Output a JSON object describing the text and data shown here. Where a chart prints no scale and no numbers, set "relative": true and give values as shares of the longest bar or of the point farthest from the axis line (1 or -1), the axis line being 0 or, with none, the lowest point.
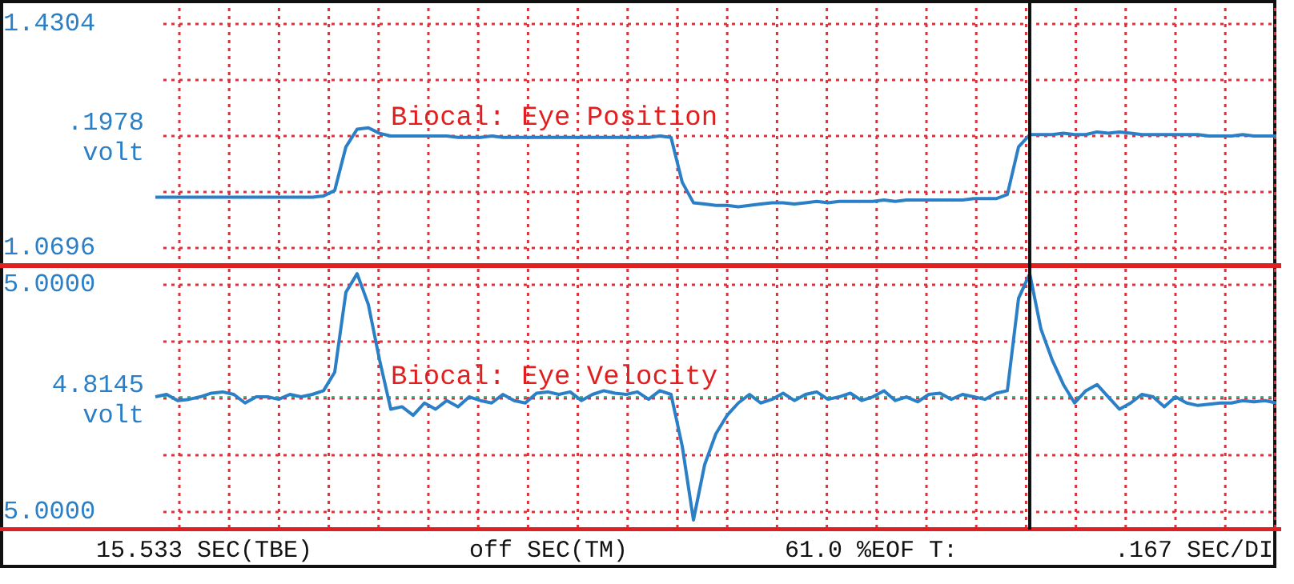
{
  "chart_data": [
    {
      "type": "line",
      "relative": true,
      "grid": true,
      "legend": false,
      "marker": "none",
      "line_style": "solid",
      "categories": [
        null,
        null,
        null,
        null,
        null,
        null,
        null,
        null,
        null,
        null,
        null,
        null,
        null,
        null,
        null,
        null,
        null,
        null,
        null,
        null,
        null,
        null,
        null,
        null,
        null,
        null,
        null,
        null,
        null,
        null,
        null,
        null,
        null,
        null,
        null,
        null,
        null,
        null,
        null,
        null,
        null,
        null,
        null,
        null,
        null,
        null,
        null,
        null,
        null,
        null,
        null,
        null,
        null,
        null,
        null,
        null,
        null,
        null,
        null,
        null,
        null,
        null,
        null,
        null,
        null,
        null,
        null,
        null,
        null,
        null,
        null,
        null,
        null,
        null,
        null,
        null,
        null,
        null,
        null,
        null,
        null,
        null,
        null,
        null,
        null,
        null,
        null,
        null,
        null,
        null,
        null,
        null,
        null,
        null,
        null,
        null,
        null,
        null,
        null,
        null,
        null
      ],
      "annotations": [
        "1.4304",
        ".1978",
        "volt",
        "1.0696"
      ],
      "series": [
        {
          "name": "Biocal: Eye Position",
          "color": "#2a7fc6",
          "values": [
            0.49,
            0.49,
            0.49,
            0.49,
            0.49,
            0.49,
            0.49,
            0.49,
            0.49,
            0.49,
            0.49,
            0.49,
            0.49,
            0.49,
            0.49,
            0.5,
            0.54,
            0.86,
            0.99,
            1.0,
            0.96,
            0.94,
            0.94,
            0.94,
            0.94,
            0.94,
            0.94,
            0.93,
            0.93,
            0.93,
            0.94,
            0.93,
            0.93,
            0.93,
            0.93,
            0.93,
            0.93,
            0.93,
            0.93,
            0.93,
            0.93,
            0.93,
            0.93,
            0.93,
            0.93,
            0.94,
            0.93,
            0.6,
            0.45,
            0.44,
            0.43,
            0.43,
            0.42,
            0.43,
            0.44,
            0.45,
            0.45,
            0.44,
            0.45,
            0.46,
            0.45,
            0.46,
            0.46,
            0.46,
            0.46,
            0.47,
            0.46,
            0.47,
            0.47,
            0.47,
            0.47,
            0.47,
            0.47,
            0.48,
            0.48,
            0.48,
            0.51,
            0.86,
            0.95,
            0.95,
            0.95,
            0.96,
            0.95,
            0.95,
            0.97,
            0.96,
            0.97,
            0.96,
            0.95,
            0.95,
            0.95,
            0.95,
            0.95,
            0.95,
            0.94,
            0.94,
            0.94,
            0.95,
            0.94,
            0.94,
            0.94
          ]
        }
      ]
    },
    {
      "type": "line",
      "relative": true,
      "grid": true,
      "legend": false,
      "marker": "none",
      "line_style": "solid",
      "categories": [
        null,
        null,
        null,
        null,
        null,
        null,
        null,
        null,
        null,
        null,
        null,
        null,
        null,
        null,
        null,
        null,
        null,
        null,
        null,
        null,
        null,
        null,
        null,
        null,
        null,
        null,
        null,
        null,
        null,
        null,
        null,
        null,
        null,
        null,
        null,
        null,
        null,
        null,
        null,
        null,
        null,
        null,
        null,
        null,
        null,
        null,
        null,
        null,
        null,
        null,
        null,
        null,
        null,
        null,
        null,
        null,
        null,
        null,
        null,
        null,
        null,
        null,
        null,
        null,
        null,
        null,
        null,
        null,
        null,
        null,
        null,
        null,
        null,
        null,
        null,
        null,
        null,
        null,
        null,
        null,
        null,
        null,
        null,
        null,
        null,
        null,
        null,
        null,
        null,
        null,
        null,
        null,
        null,
        null,
        null,
        null,
        null,
        null,
        null,
        null,
        null
      ],
      "annotations": [
        "5.0000",
        "4.8145",
        "volt",
        "5.0000",
        "15.533 SEC(TBE)",
        "off SEC(TM)",
        "61.0 %EOF T:",
        ".167 SEC/DI"
      ],
      "ref_lines": [
        {
          "axis": "y",
          "value": 0,
          "color": "#3fbf8f",
          "line_style": "dotted"
        }
      ],
      "series": [
        {
          "name": "Biocal: Eye Velocity",
          "color": "#2a7fc6",
          "values": [
            0.0,
            0.02,
            -0.03,
            -0.02,
            0.0,
            0.03,
            0.04,
            0.02,
            -0.05,
            0.0,
            0.0,
            -0.02,
            0.02,
            0.0,
            0.02,
            0.05,
            0.2,
            0.85,
            1.0,
            0.75,
            0.3,
            -0.1,
            -0.08,
            -0.15,
            -0.05,
            -0.1,
            -0.03,
            -0.08,
            0.0,
            -0.03,
            -0.05,
            0.02,
            -0.03,
            -0.05,
            0.03,
            0.04,
            0.02,
            0.04,
            -0.03,
            0.02,
            0.05,
            0.03,
            0.02,
            0.04,
            -0.02,
            0.05,
            0.02,
            -0.4,
            -1.0,
            -0.55,
            -0.3,
            -0.15,
            -0.05,
            0.02,
            -0.05,
            -0.02,
            0.03,
            -0.03,
            0.02,
            0.04,
            -0.02,
            0.0,
            0.03,
            -0.03,
            0.0,
            0.05,
            -0.03,
            0.0,
            -0.04,
            0.02,
            0.03,
            -0.02,
            0.02,
            0.0,
            -0.02,
            0.03,
            0.05,
            0.8,
            1.0,
            0.55,
            0.3,
            0.1,
            -0.05,
            0.05,
            0.1,
            0.0,
            -0.1,
            -0.05,
            0.02,
            0.0,
            -0.08,
            0.0,
            -0.05,
            -0.07,
            -0.06,
            -0.05,
            -0.05,
            -0.03,
            -0.04,
            -0.03,
            -0.05
          ]
        }
      ]
    }
  ]
}
